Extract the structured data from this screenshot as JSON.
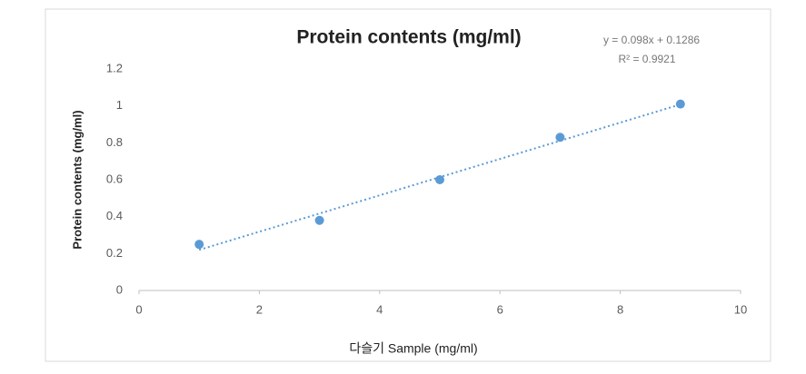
{
  "chart_data": {
    "type": "scatter",
    "title": "Protein contents (mg/ml)",
    "x_label": "다슬기 Sample (mg/ml)",
    "y_label": "Protein contents (mg/ml)",
    "annotations": [
      "y = 0.098x + 0.1286",
      "R² = 0.9921"
    ],
    "series": [
      {
        "name": "Protein contents",
        "color": "#5b9bd5",
        "x": [
          1,
          3,
          5,
          7,
          9
        ],
        "values": [
          0.25,
          0.38,
          0.6,
          0.83,
          1.01
        ]
      }
    ],
    "trendline": "linear",
    "xlim": [
      0,
      10
    ],
    "xticks": [
      0,
      2,
      4,
      6,
      8,
      10
    ],
    "ylim": [
      0,
      1.2
    ],
    "yticks": [
      0,
      0.2,
      0.4,
      0.6,
      0.8,
      1,
      1.2
    ],
    "grid": false
  }
}
